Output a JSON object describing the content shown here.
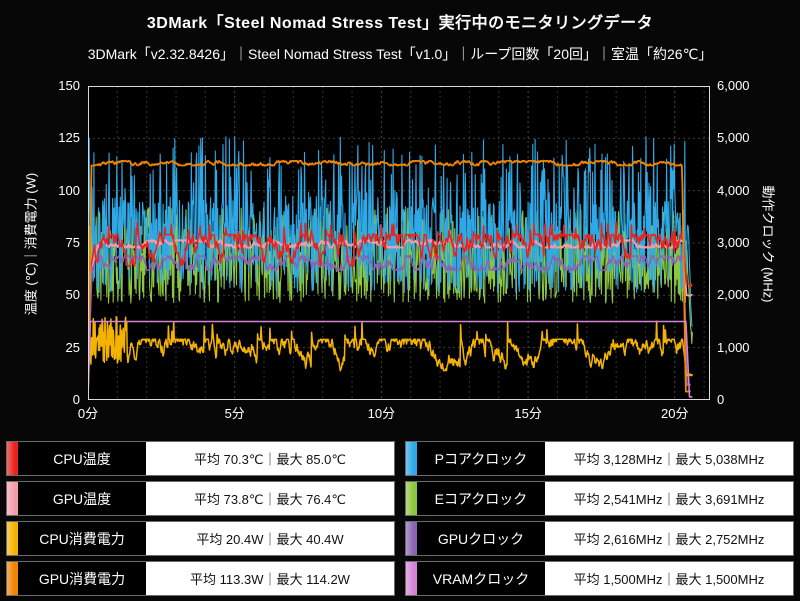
{
  "header": {
    "title": "3DMark「Steel Nomad Stress Test」実行中のモニタリングデータ",
    "subtitle": "3DMark「v2.32.8426」｜Steel Nomad Stress Test「v1.0」｜ループ回数「20回」｜室温「約26℃」"
  },
  "chart_data": {
    "type": "line",
    "x_axis": {
      "ticks": [
        0,
        5,
        10,
        15,
        20
      ],
      "suffix": "分",
      "max": 21.2
    },
    "left_axis": {
      "title": "温度 (℃)｜消費電力 (W)",
      "ticks": [
        0,
        25,
        50,
        75,
        100,
        125,
        150
      ],
      "max": 150
    },
    "right_axis": {
      "title": "動作クロック (MHz)",
      "ticks": [
        0,
        1000,
        2000,
        3000,
        4000,
        5000,
        6000
      ],
      "max": 6000
    },
    "grid": true,
    "legend_position": "bottom",
    "draw_order": [
      "ecore",
      "pcore",
      "gpu_clock",
      "cpu_power",
      "gpu_temp",
      "cpu_temp",
      "gpu_power",
      "vram"
    ],
    "series": [
      {
        "key": "cpu_temp",
        "label": "CPU温度",
        "color": "#e8231d",
        "axis": "L",
        "width": 1.5,
        "col": 0,
        "avg": 70.3,
        "max": 85.0,
        "unit": "℃",
        "value_text": "平均 70.3℃｜最大 85.0℃",
        "sim": {
          "start": 55,
          "ramp": 0.2,
          "mode": "walk",
          "base": 72,
          "lo": 64,
          "hi": 79,
          "amp": 3.5,
          "spike_p": 0.05,
          "spike_lo": 79,
          "spike_hi": 85,
          "end_t": 20.28,
          "end_val": 55,
          "stop": 20.6,
          "end_jit": 1.5
        }
      },
      {
        "key": "gpu_temp",
        "label": "GPU温度",
        "color": "#f59cab",
        "axis": "L",
        "width": 1.8,
        "col": 0,
        "avg": 73.8,
        "max": 76.4,
        "unit": "℃",
        "value_text": "平均 73.8℃｜最大 76.4℃",
        "sim": {
          "start": 58,
          "ramp": 0.35,
          "mode": "walk",
          "base": 74.5,
          "lo": 72.8,
          "hi": 76.4,
          "amp": 0.9,
          "end_t": 20.28,
          "end_val": 50,
          "stop": 20.6,
          "end_jit": 0.5
        }
      },
      {
        "key": "cpu_power",
        "label": "CPU消費電力",
        "color": "#f5b301",
        "axis": "L",
        "width": 1.5,
        "col": 0,
        "avg": 20.4,
        "max": 40.4,
        "unit": "W",
        "value_text": "平均 20.4W｜最大 40.4W",
        "sim": {
          "start": 30,
          "ramp": 0.04,
          "mode": "walk",
          "base": 20,
          "lo": 14,
          "hi": 29,
          "amp": 3,
          "spike_p": 0.03,
          "spike_lo": 28,
          "spike_hi": 38,
          "early": {
            "until": 1.4,
            "lo": 17,
            "hi": 40
          },
          "end_t": 20.28,
          "end_val": 12,
          "stop": 20.6,
          "end_jit": 1
        }
      },
      {
        "key": "gpu_power",
        "label": "GPU消費電力",
        "color": "#f08300",
        "axis": "L",
        "width": 1.8,
        "col": 0,
        "avg": 113.3,
        "max": 114.2,
        "unit": "W",
        "value_text": "平均 113.3W｜最大 114.2W",
        "sim": {
          "start": 1,
          "ramp": 0.12,
          "mode": "walk",
          "base": 113.3,
          "lo": 112,
          "hi": 114.2,
          "amp": 0.6,
          "end_t": 20.25,
          "end_val": 4,
          "stop": 20.55,
          "end_jit": 0.5
        }
      },
      {
        "key": "pcore",
        "label": "Pコアクロック",
        "color": "#2ea8e6",
        "axis": "R",
        "width": 1.1,
        "col": 1,
        "avg": 3128,
        "max": 5038,
        "unit": "MHz",
        "value_text": "平均 3,128MHz｜最大 5,038MHz",
        "sim": {
          "start": 4900,
          "ramp": 0.03,
          "mode": "noise",
          "lo": 2050,
          "hi": 3900,
          "spike_p": 0.17,
          "spike_lo": 3950,
          "spike_hi": 5038,
          "end_t": 20.45,
          "end_val": 1500,
          "stop": 20.6,
          "end_jit": 300
        }
      },
      {
        "key": "ecore",
        "label": "Eコアクロック",
        "color": "#8dc63f",
        "axis": "R",
        "width": 1.1,
        "col": 1,
        "avg": 2541,
        "max": 3691,
        "unit": "MHz",
        "value_text": "平均 2,541MHz｜最大 3,691MHz",
        "sim": {
          "start": 3600,
          "ramp": 0.03,
          "mode": "noise",
          "lo": 1850,
          "hi": 3350,
          "spike_p": 0.1,
          "spike_lo": 3400,
          "spike_hi": 3691,
          "end_t": 20.45,
          "end_val": 1200,
          "stop": 20.6,
          "end_jit": 250
        }
      },
      {
        "key": "gpu_clock",
        "label": "GPUクロック",
        "color": "#8a63b3",
        "axis": "R",
        "width": 1.4,
        "col": 1,
        "avg": 2616,
        "max": 2752,
        "unit": "MHz",
        "value_text": "平均 2,616MHz｜最大 2,752MHz",
        "sim": {
          "start": 300,
          "ramp": 0.15,
          "mode": "walk",
          "base": 2640,
          "lo": 2480,
          "hi": 2752,
          "amp": 90,
          "end_t": 20.3,
          "end_val": 300,
          "stop": 20.55,
          "end_jit": 50
        }
      },
      {
        "key": "vram",
        "label": "VRAMクロック",
        "color": "#d583d5",
        "axis": "R",
        "width": 1.6,
        "col": 1,
        "avg": 1500,
        "max": 1500,
        "unit": "MHz",
        "value_text": "平均 1,500MHz｜最大 1,500MHz",
        "sim": {
          "start": 80,
          "ramp": 0.08,
          "mode": "flat",
          "base": 1500,
          "lo": 1500,
          "hi": 1500,
          "end_t": 20.38,
          "end_val": 60,
          "stop": 20.6,
          "end_jit": 10
        }
      }
    ]
  }
}
